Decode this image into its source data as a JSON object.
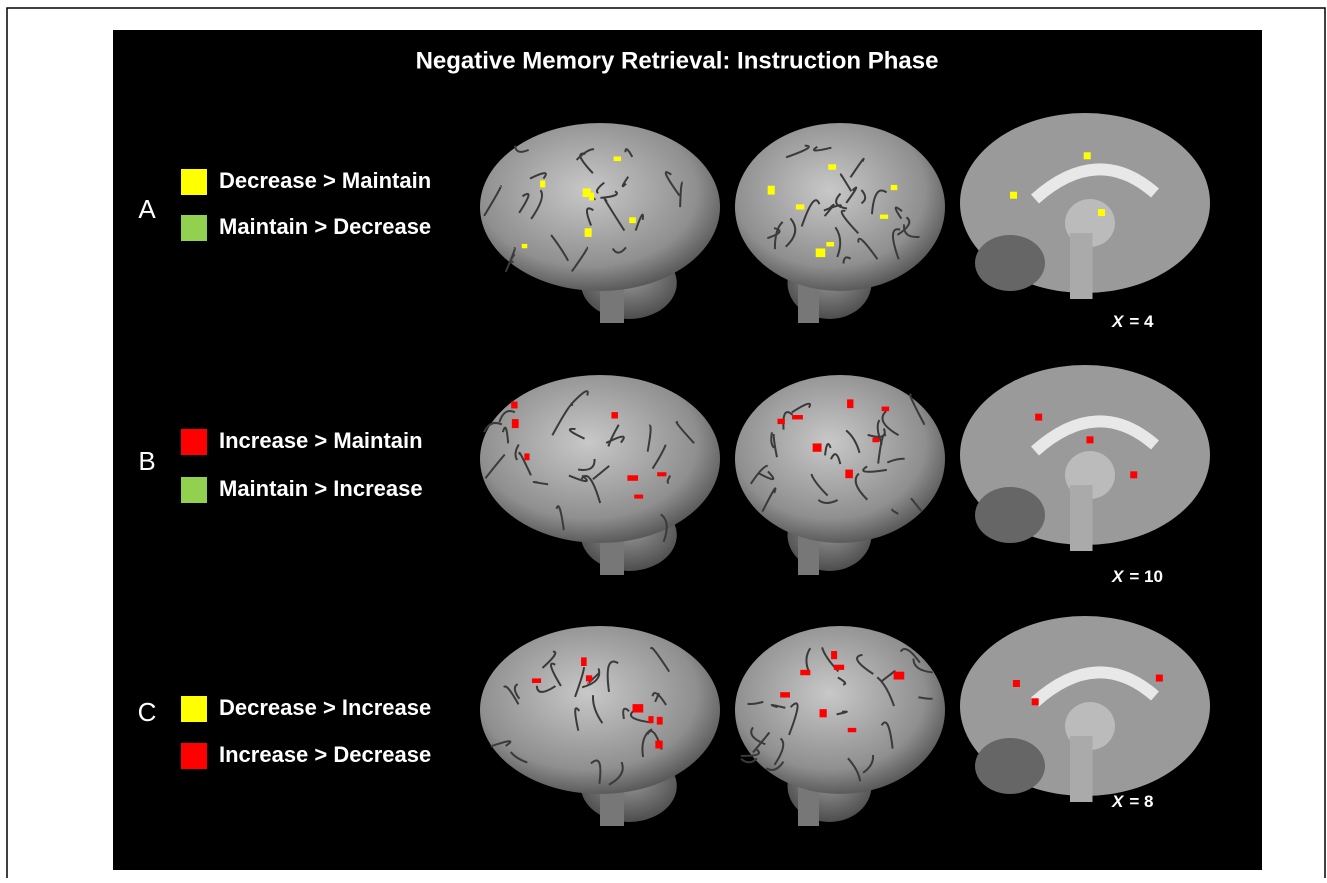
{
  "title": "Negative Memory Retrieval:  Instruction Phase",
  "rows": [
    {
      "label": "A",
      "legend": [
        {
          "text": "Decrease > Maintain",
          "color": "#ffff00"
        },
        {
          "text": "Maintain > Decrease",
          "color": "#92d050"
        }
      ],
      "slice": {
        "var": "X",
        "text": "= 4"
      }
    },
    {
      "label": "B",
      "legend": [
        {
          "text": "Increase > Maintain",
          "color": "#ff0000"
        },
        {
          "text": "Maintain > Increase",
          "color": "#92d050"
        }
      ],
      "slice": {
        "var": "X",
        "text": "= 10"
      }
    },
    {
      "label": "C",
      "legend": [
        {
          "text": "Decrease > Increase",
          "color": "#ffff00"
        },
        {
          "text": "Increase > Decrease",
          "color": "#ff0000"
        }
      ],
      "slice": {
        "var": "X",
        "text": "= 8"
      }
    }
  ]
}
